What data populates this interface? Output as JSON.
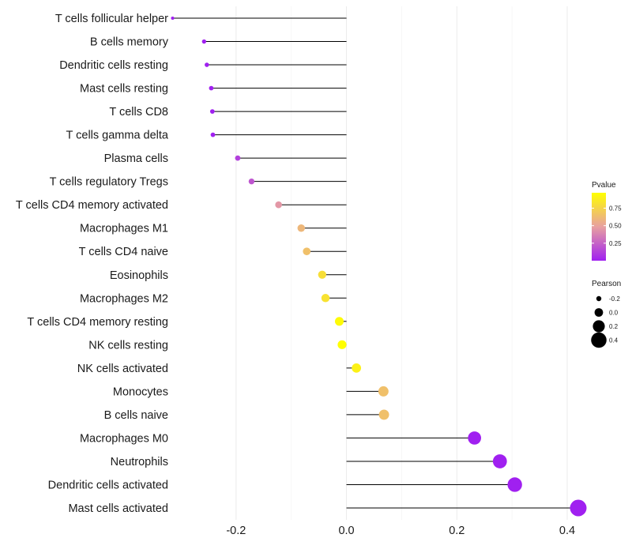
{
  "chart_data": {
    "type": "lollipop",
    "title": "",
    "xlabel": "",
    "ylabel": "",
    "xlim": [
      -0.31,
      0.41
    ],
    "x_ticks": [
      -0.2,
      0.0,
      0.2,
      0.4
    ],
    "x_tick_labels": [
      "-0.2",
      "0.0",
      "0.2",
      "0.4"
    ],
    "grid": true,
    "baseline": 0,
    "categories": [
      "T cells follicular helper",
      "B cells memory",
      "Dendritic cells resting",
      "Mast cells resting",
      "T cells CD8",
      "T cells gamma delta",
      "Plasma cells",
      "T cells regulatory  Tregs ",
      "T cells CD4 memory activated",
      "Macrophages M1",
      "T cells CD4 naive",
      "Eosinophils",
      "Macrophages M2",
      "T cells CD4 memory resting",
      "NK cells resting",
      "NK cells activated",
      "Monocytes",
      "B cells naive",
      "Macrophages M0",
      "Neutrophils",
      "Dendritic cells activated",
      "Mast cells activated"
    ],
    "values": [
      -0.315,
      -0.258,
      -0.253,
      -0.245,
      -0.243,
      -0.242,
      -0.197,
      -0.172,
      -0.123,
      -0.082,
      -0.072,
      -0.044,
      -0.038,
      -0.013,
      -0.008,
      0.018,
      0.067,
      0.068,
      0.232,
      0.278,
      0.305,
      0.42
    ],
    "pvalues": [
      0.0,
      0.0,
      0.0,
      0.0,
      0.0,
      0.0,
      0.12,
      0.2,
      0.45,
      0.6,
      0.65,
      0.8,
      0.82,
      0.95,
      0.97,
      0.9,
      0.65,
      0.65,
      0.0,
      0.0,
      0.0,
      0.0
    ],
    "legend_pvalue": {
      "title": "Pvalue",
      "breaks": [
        0.75,
        0.5,
        0.25
      ],
      "labels": [
        "0.75",
        "0.50",
        "0.25"
      ],
      "range": [
        0.0,
        0.97
      ],
      "low_color": "#a020f0",
      "mid_color": "#e8a0a0",
      "high_color": "#ffff00"
    },
    "legend_pearson": {
      "title": "Pearson",
      "breaks": [
        -0.2,
        0.0,
        0.2,
        0.4
      ],
      "labels": [
        "-0.2",
        "0.0",
        "0.2",
        "0.4"
      ]
    },
    "legend_position": "right"
  }
}
